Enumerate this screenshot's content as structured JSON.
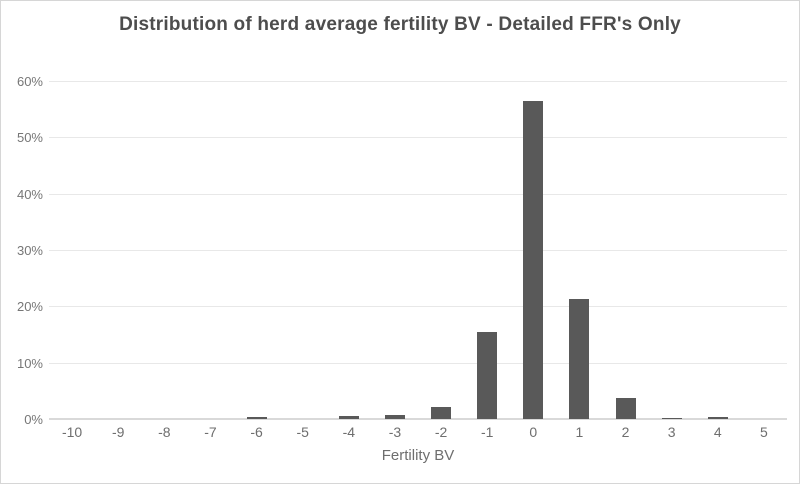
{
  "title": "Distribution of herd average fertility BV - Detailed FFR's Only",
  "chart_data": {
    "type": "bar",
    "title": "Distribution of herd average fertility BV - Detailed FFR's Only",
    "xlabel": "Fertility BV",
    "ylabel": "",
    "categories": [
      "-10",
      "-9",
      "-8",
      "-7",
      "-6",
      "-5",
      "-4",
      "-3",
      "-2",
      "-1",
      "0",
      "1",
      "2",
      "3",
      "4",
      "5"
    ],
    "values": [
      0,
      0,
      0,
      0,
      0.3,
      0,
      0.5,
      0.7,
      2.1,
      15.5,
      56.5,
      21.3,
      3.8,
      0.2,
      0.4,
      0
    ],
    "value_unit": "percent",
    "ylim": [
      0,
      60
    ],
    "ytick_step": 10,
    "yticks": [
      "0%",
      "10%",
      "20%",
      "30%",
      "40%",
      "50%",
      "60%"
    ],
    "grid": true,
    "legend": "none",
    "bar_color": "#595959",
    "gridline_color": "#e8e8e8",
    "axis_label_color": "#6e6e6e",
    "title_color": "#4d4d4d"
  }
}
